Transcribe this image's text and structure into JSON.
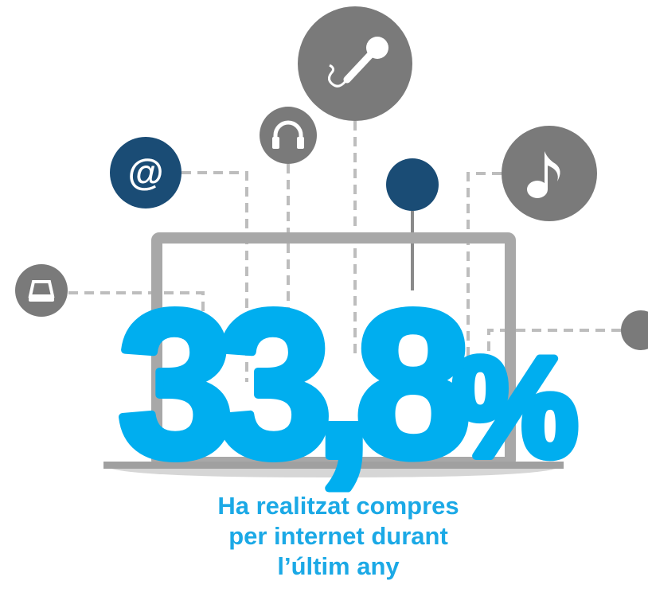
{
  "icon_label": "@",
  "stat": {
    "number": "33,8",
    "unit": "%"
  },
  "caption": [
    "Ha realitzat compres",
    "per internet durant",
    "l’últim any"
  ]
}
